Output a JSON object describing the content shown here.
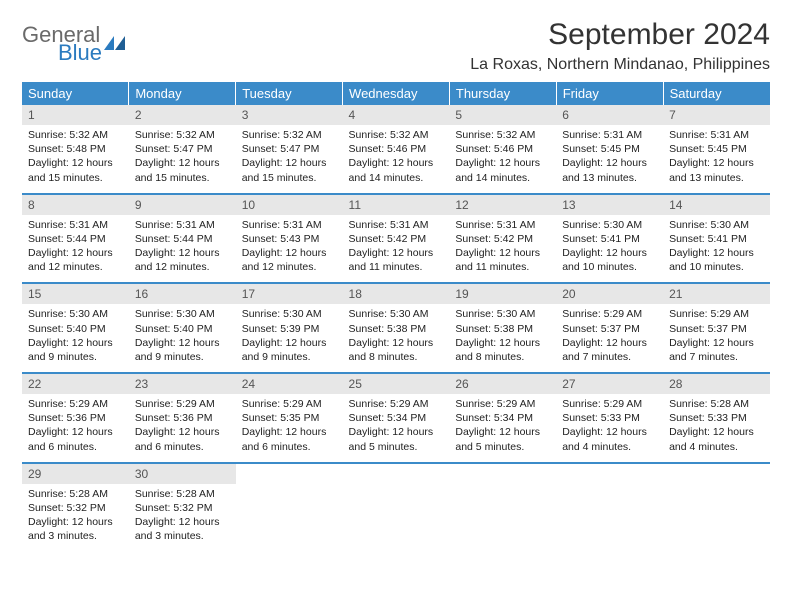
{
  "brand": {
    "line1": "General",
    "line2": "Blue"
  },
  "title": "September 2024",
  "location": "La Roxas, Northern Mindanao, Philippines",
  "colors": {
    "header_bg": "#3b8bc9",
    "header_fg": "#ffffff",
    "daynum_bg": "#e7e7e7",
    "daynum_fg": "#555555",
    "row_divider": "#3b8bc9",
    "logo_gray": "#6a6a6a",
    "logo_blue": "#2b7bbf",
    "text": "#222222",
    "page_bg": "#ffffff"
  },
  "weekdays": [
    "Sunday",
    "Monday",
    "Tuesday",
    "Wednesday",
    "Thursday",
    "Friday",
    "Saturday"
  ],
  "days": [
    {
      "n": "1",
      "sr": "5:32 AM",
      "ss": "5:48 PM",
      "dl": "12 hours and 15 minutes."
    },
    {
      "n": "2",
      "sr": "5:32 AM",
      "ss": "5:47 PM",
      "dl": "12 hours and 15 minutes."
    },
    {
      "n": "3",
      "sr": "5:32 AM",
      "ss": "5:47 PM",
      "dl": "12 hours and 15 minutes."
    },
    {
      "n": "4",
      "sr": "5:32 AM",
      "ss": "5:46 PM",
      "dl": "12 hours and 14 minutes."
    },
    {
      "n": "5",
      "sr": "5:32 AM",
      "ss": "5:46 PM",
      "dl": "12 hours and 14 minutes."
    },
    {
      "n": "6",
      "sr": "5:31 AM",
      "ss": "5:45 PM",
      "dl": "12 hours and 13 minutes."
    },
    {
      "n": "7",
      "sr": "5:31 AM",
      "ss": "5:45 PM",
      "dl": "12 hours and 13 minutes."
    },
    {
      "n": "8",
      "sr": "5:31 AM",
      "ss": "5:44 PM",
      "dl": "12 hours and 12 minutes."
    },
    {
      "n": "9",
      "sr": "5:31 AM",
      "ss": "5:44 PM",
      "dl": "12 hours and 12 minutes."
    },
    {
      "n": "10",
      "sr": "5:31 AM",
      "ss": "5:43 PM",
      "dl": "12 hours and 12 minutes."
    },
    {
      "n": "11",
      "sr": "5:31 AM",
      "ss": "5:42 PM",
      "dl": "12 hours and 11 minutes."
    },
    {
      "n": "12",
      "sr": "5:31 AM",
      "ss": "5:42 PM",
      "dl": "12 hours and 11 minutes."
    },
    {
      "n": "13",
      "sr": "5:30 AM",
      "ss": "5:41 PM",
      "dl": "12 hours and 10 minutes."
    },
    {
      "n": "14",
      "sr": "5:30 AM",
      "ss": "5:41 PM",
      "dl": "12 hours and 10 minutes."
    },
    {
      "n": "15",
      "sr": "5:30 AM",
      "ss": "5:40 PM",
      "dl": "12 hours and 9 minutes."
    },
    {
      "n": "16",
      "sr": "5:30 AM",
      "ss": "5:40 PM",
      "dl": "12 hours and 9 minutes."
    },
    {
      "n": "17",
      "sr": "5:30 AM",
      "ss": "5:39 PM",
      "dl": "12 hours and 9 minutes."
    },
    {
      "n": "18",
      "sr": "5:30 AM",
      "ss": "5:38 PM",
      "dl": "12 hours and 8 minutes."
    },
    {
      "n": "19",
      "sr": "5:30 AM",
      "ss": "5:38 PM",
      "dl": "12 hours and 8 minutes."
    },
    {
      "n": "20",
      "sr": "5:29 AM",
      "ss": "5:37 PM",
      "dl": "12 hours and 7 minutes."
    },
    {
      "n": "21",
      "sr": "5:29 AM",
      "ss": "5:37 PM",
      "dl": "12 hours and 7 minutes."
    },
    {
      "n": "22",
      "sr": "5:29 AM",
      "ss": "5:36 PM",
      "dl": "12 hours and 6 minutes."
    },
    {
      "n": "23",
      "sr": "5:29 AM",
      "ss": "5:36 PM",
      "dl": "12 hours and 6 minutes."
    },
    {
      "n": "24",
      "sr": "5:29 AM",
      "ss": "5:35 PM",
      "dl": "12 hours and 6 minutes."
    },
    {
      "n": "25",
      "sr": "5:29 AM",
      "ss": "5:34 PM",
      "dl": "12 hours and 5 minutes."
    },
    {
      "n": "26",
      "sr": "5:29 AM",
      "ss": "5:34 PM",
      "dl": "12 hours and 5 minutes."
    },
    {
      "n": "27",
      "sr": "5:29 AM",
      "ss": "5:33 PM",
      "dl": "12 hours and 4 minutes."
    },
    {
      "n": "28",
      "sr": "5:28 AM",
      "ss": "5:33 PM",
      "dl": "12 hours and 4 minutes."
    },
    {
      "n": "29",
      "sr": "5:28 AM",
      "ss": "5:32 PM",
      "dl": "12 hours and 3 minutes."
    },
    {
      "n": "30",
      "sr": "5:28 AM",
      "ss": "5:32 PM",
      "dl": "12 hours and 3 minutes."
    }
  ],
  "labels": {
    "sunrise": "Sunrise: ",
    "sunset": "Sunset: ",
    "daylight": "Daylight: "
  }
}
